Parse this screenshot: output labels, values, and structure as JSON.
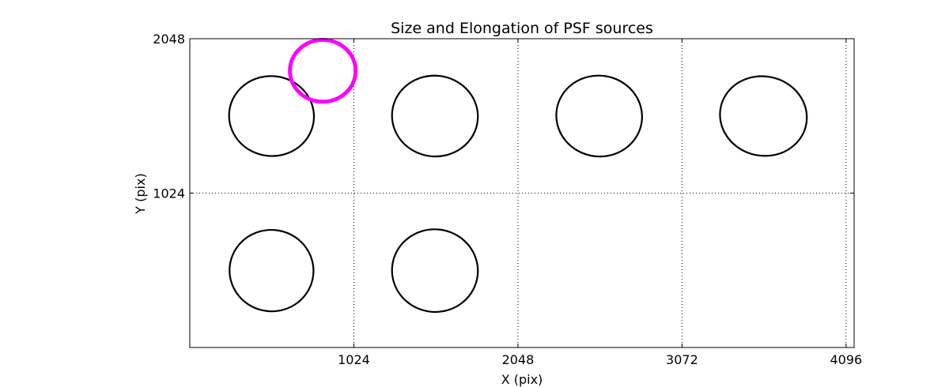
{
  "chart_data": {
    "type": "scatter",
    "title": "Size and Elongation of PSF sources",
    "xlabel": "X (pix)",
    "ylabel": "Y (pix)",
    "xlim": [
      0,
      4146
    ],
    "ylim": [
      0,
      2048
    ],
    "xticks": [
      1024,
      2048,
      3072,
      4096
    ],
    "yticks": [
      1024,
      2048
    ],
    "grid": true,
    "grid_style": "dotted",
    "ellipses": [
      {
        "x": 510,
        "y": 1535,
        "rx": 265,
        "ry": 265,
        "angle": 6,
        "color": "#000000"
      },
      {
        "x": 1530,
        "y": 1535,
        "rx": 268,
        "ry": 268,
        "angle": 6,
        "color": "#000000"
      },
      {
        "x": 2555,
        "y": 1535,
        "rx": 268,
        "ry": 268,
        "angle": 8,
        "color": "#000000"
      },
      {
        "x": 3580,
        "y": 1535,
        "rx": 272,
        "ry": 263,
        "angle": 12,
        "color": "#000000"
      },
      {
        "x": 510,
        "y": 510,
        "rx": 262,
        "ry": 270,
        "angle": 6,
        "color": "#000000"
      },
      {
        "x": 1530,
        "y": 510,
        "rx": 268,
        "ry": 274,
        "angle": 6,
        "color": "#000000"
      },
      {
        "x": 830,
        "y": 1835,
        "rx": 205,
        "ry": 205,
        "angle": 0,
        "color": "#ff00ff",
        "highlight": true
      }
    ]
  }
}
